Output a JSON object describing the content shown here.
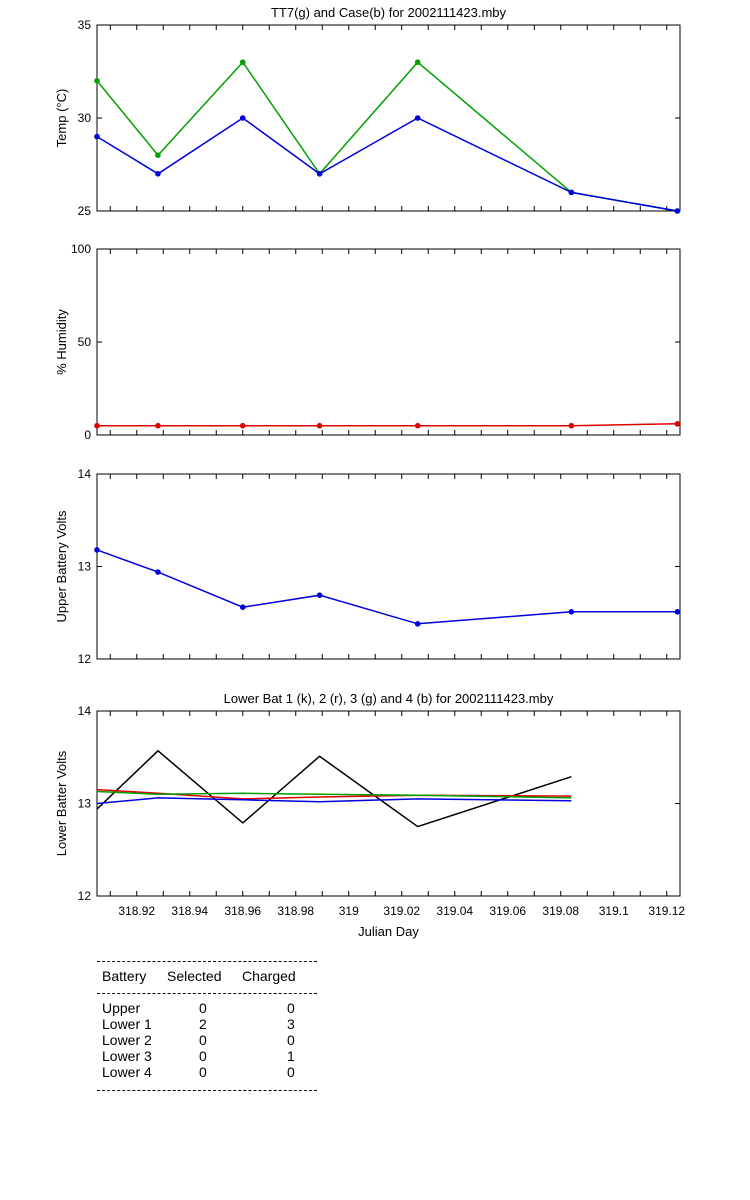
{
  "chart_data": [
    {
      "type": "line",
      "title": "TT7(g) and Case(b) for 2002111423.mby",
      "xlabel": "",
      "ylabel": "Temp (°C)",
      "xlim": [
        318.905,
        319.125
      ],
      "ylim": [
        25,
        35
      ],
      "yticks": [
        25,
        30,
        35
      ],
      "grid": false,
      "series": [
        {
          "color": "#00a000",
          "markers": true,
          "x": [
            318.905,
            318.928,
            318.96,
            318.989,
            319.026,
            319.084,
            319.124
          ],
          "y": [
            32,
            28,
            33,
            27,
            33,
            26,
            25
          ]
        },
        {
          "color": "#0000e0",
          "markers": true,
          "x": [
            318.905,
            318.928,
            318.96,
            318.989,
            319.026,
            319.084,
            319.124
          ],
          "y": [
            29,
            27,
            30,
            27,
            30,
            26,
            25
          ]
        }
      ]
    },
    {
      "type": "line",
      "title": "",
      "xlabel": "",
      "ylabel": "% Humidity",
      "xlim": [
        318.905,
        319.125
      ],
      "ylim": [
        0,
        100
      ],
      "yticks": [
        0,
        50,
        100
      ],
      "grid": false,
      "series": [
        {
          "color": "#e00000",
          "markers": true,
          "x": [
            318.905,
            318.928,
            318.96,
            318.989,
            319.026,
            319.084,
            319.124
          ],
          "y": [
            5,
            5,
            5,
            5,
            5,
            5,
            6
          ]
        }
      ]
    },
    {
      "type": "line",
      "title": "",
      "xlabel": "",
      "ylabel": "Upper Battery Volts",
      "xlim": [
        318.905,
        319.125
      ],
      "ylim": [
        12,
        14
      ],
      "yticks": [
        12,
        13,
        14
      ],
      "grid": false,
      "series": [
        {
          "color": "#0000e0",
          "markers": true,
          "x": [
            318.905,
            318.928,
            318.96,
            318.989,
            319.026,
            319.084,
            319.124
          ],
          "y": [
            13.18,
            12.94,
            12.56,
            12.69,
            12.38,
            12.51,
            12.51
          ]
        }
      ]
    },
    {
      "type": "line",
      "title": "Lower Bat 1 (k), 2 (r), 3 (g) and 4 (b) for 2002111423.mby",
      "xlabel": "Julian Day",
      "ylabel": "Lower Batter Volts",
      "xlim": [
        318.905,
        319.125
      ],
      "ylim": [
        12,
        14
      ],
      "yticks": [
        12,
        13,
        14
      ],
      "xticks": [
        "318.92",
        "318.94",
        "318.96",
        "318.98",
        "319",
        "319.02",
        "319.04",
        "319.06",
        "319.08",
        "319.1",
        "319.12"
      ],
      "grid": false,
      "series": [
        {
          "color": "#000000",
          "markers": false,
          "x": [
            318.905,
            318.928,
            318.96,
            318.989,
            319.026,
            319.084
          ],
          "y": [
            12.94,
            13.57,
            12.79,
            13.51,
            12.75,
            13.29
          ]
        },
        {
          "color": "#e00000",
          "markers": false,
          "x": [
            318.905,
            318.928,
            318.96,
            318.989,
            319.026,
            319.084
          ],
          "y": [
            13.15,
            13.11,
            13.05,
            13.07,
            13.09,
            13.08
          ]
        },
        {
          "color": "#00a000",
          "markers": false,
          "x": [
            318.905,
            318.928,
            318.96,
            318.989,
            319.026,
            319.084
          ],
          "y": [
            13.13,
            13.1,
            13.11,
            13.1,
            13.09,
            13.06
          ]
        },
        {
          "color": "#0000e0",
          "markers": false,
          "x": [
            318.905,
            318.928,
            318.96,
            318.989,
            319.026,
            319.084
          ],
          "y": [
            13.0,
            13.06,
            13.04,
            13.02,
            13.05,
            13.03
          ]
        }
      ]
    }
  ],
  "table": {
    "headers": [
      "Battery",
      "Selected",
      "Charged"
    ],
    "rows": [
      [
        "Upper",
        "0",
        "0"
      ],
      [
        "Lower 1",
        "2",
        "3"
      ],
      [
        "Lower 2",
        "0",
        "0"
      ],
      [
        "Lower 3",
        "0",
        "1"
      ],
      [
        "Lower 4",
        "0",
        "0"
      ]
    ]
  }
}
